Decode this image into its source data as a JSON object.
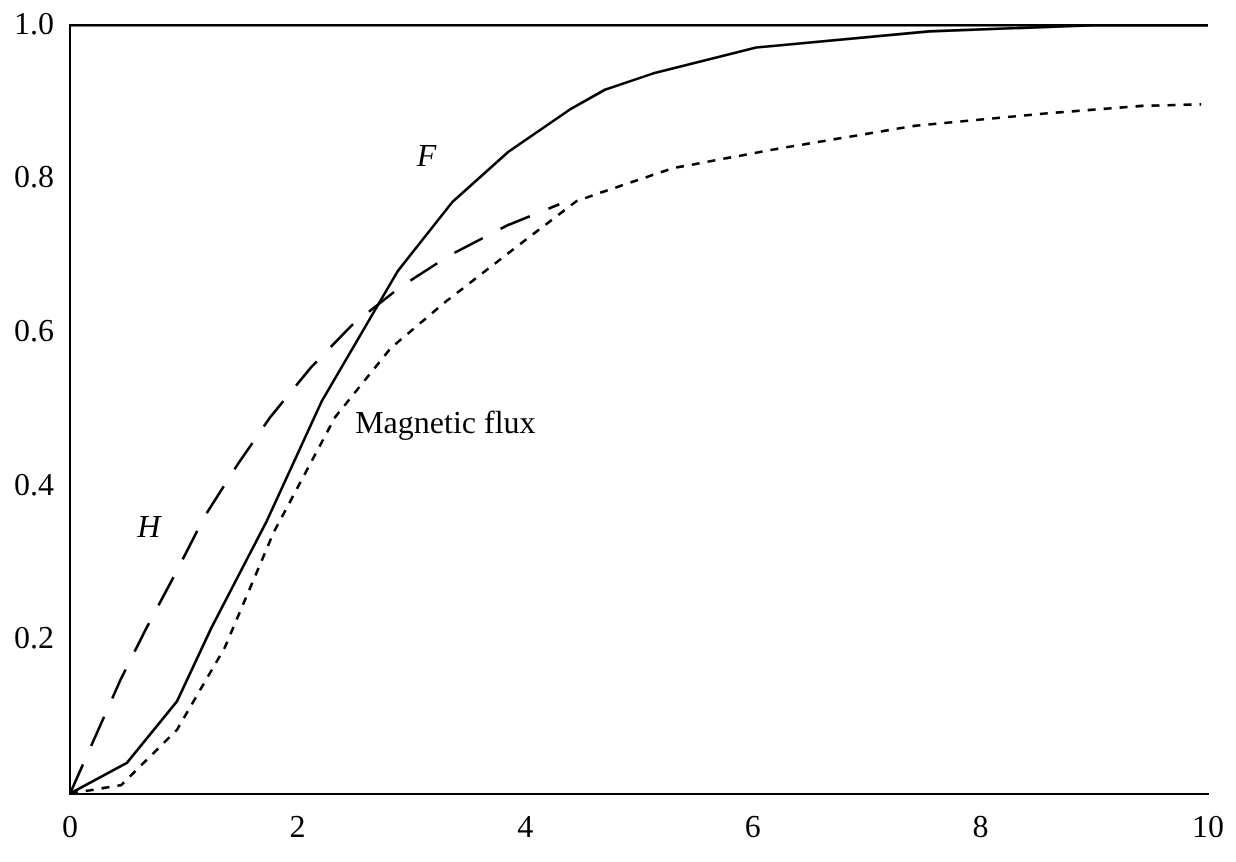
{
  "chart_data": {
    "type": "line",
    "xlim": [
      0,
      10
    ],
    "ylim": [
      0,
      1
    ],
    "xticks": [
      0,
      2,
      4,
      6,
      8,
      10
    ],
    "ref_lines": [
      {
        "axis": "y",
        "value": 1,
        "color": "#000000"
      }
    ],
    "yticks": [
      0.2,
      0.4,
      0.6,
      0.8,
      {
        "value": 1,
        "label": "1.0"
      }
    ],
    "grid": false,
    "legend": false,
    "marker": "none",
    "series": [
      {
        "name": "F",
        "color": "#000000",
        "line_style": "solid",
        "x": [
          0,
          0.5,
          0.94,
          1.24,
          1.73,
          2.21,
          2.88,
          3.36,
          3.85,
          4.39,
          4.7,
          5.12,
          6.03,
          7.55,
          9,
          10
        ],
        "values": [
          0,
          0.04,
          0.12,
          0.215,
          0.355,
          0.51,
          0.68,
          0.77,
          0.835,
          0.89,
          0.916,
          0.937,
          0.971,
          0.992,
          1,
          1
        ]
      },
      {
        "name": "H",
        "color": "#000000",
        "line_style": "dashed",
        "x": [
          0,
          0.21,
          0.45,
          0.67,
          0.94,
          1.18,
          1.48,
          1.76,
          2.12,
          2.48,
          2.91,
          3.33,
          3.85,
          4.3
        ],
        "values": [
          0,
          0.07,
          0.15,
          0.215,
          0.29,
          0.36,
          0.43,
          0.49,
          0.555,
          0.61,
          0.66,
          0.7,
          0.74,
          0.767
        ]
      },
      {
        "name": "Magnetic flux",
        "color": "#000000",
        "line_style": "dotted",
        "x": [
          0,
          0.45,
          0.94,
          1.36,
          1.79,
          2.33,
          2.82,
          3.3,
          3.91,
          4.45,
          4.7,
          5.3,
          6.21,
          7.42,
          8.64,
          9.42,
          9.94
        ],
        "values": [
          0,
          0.011,
          0.083,
          0.19,
          0.34,
          0.49,
          0.58,
          0.64,
          0.71,
          0.771,
          0.784,
          0.814,
          0.839,
          0.869,
          0.886,
          0.895,
          0.897
        ]
      }
    ]
  }
}
